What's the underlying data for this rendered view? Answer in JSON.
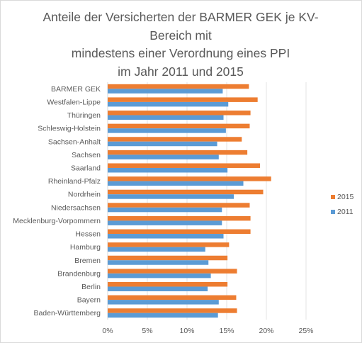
{
  "chart_data": {
    "type": "bar",
    "orientation": "horizontal",
    "title_lines": [
      "Anteile der Versicherten der BARMER GEK je KV-",
      "Bereich mit",
      "mindestens einer Verordnung eines PPI",
      "im Jahr 2011 und 2015"
    ],
    "categories": [
      "BARMER GEK",
      "Westfalen-Lippe",
      "Thüringen",
      "Schleswig-Holstein",
      "Sachsen-Anhalt",
      "Sachsen",
      "Saarland",
      "Rheinland-Pfalz",
      "Nordrhein",
      "Niedersachsen",
      "Mecklenburg-Vorpommern",
      "Hessen",
      "Hamburg",
      "Bremen",
      "Brandenburg",
      "Berlin",
      "Bayern",
      "Baden-Württemberg"
    ],
    "series": [
      {
        "name": "2015",
        "color": "#ed7d31",
        "values": [
          17.8,
          18.9,
          18.0,
          17.9,
          16.9,
          17.6,
          19.2,
          20.6,
          19.6,
          17.9,
          18.0,
          18.0,
          15.3,
          15.1,
          16.3,
          15.1,
          16.2,
          16.3
        ]
      },
      {
        "name": "2011",
        "color": "#5b9bd5",
        "values": [
          14.5,
          15.2,
          14.6,
          14.9,
          13.8,
          14.0,
          15.1,
          17.1,
          15.9,
          14.4,
          14.4,
          14.6,
          12.3,
          12.7,
          13.0,
          12.6,
          14.0,
          13.9
        ]
      }
    ],
    "xlim": [
      0,
      25
    ],
    "xticks": [
      0,
      5,
      10,
      15,
      20,
      25
    ],
    "xtick_labels": [
      "0%",
      "5%",
      "10%",
      "15%",
      "20%",
      "25%"
    ],
    "gridlines": true,
    "legend_position": "right"
  }
}
